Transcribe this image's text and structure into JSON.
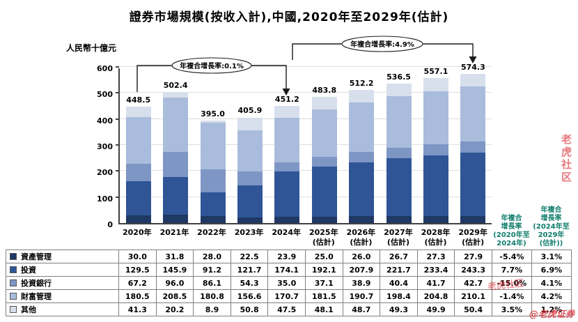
{
  "page": {
    "title": "證券市場規模(按收入計),中國,2020年至2029年(估計)",
    "unit_label": "人民幣十億元"
  },
  "annotations": {
    "cagr_2020_2024_label": "年複合增長率:0.1%",
    "cagr_2024_2029_label": "年複合增長率:4.9%"
  },
  "cagr_column_headers": {
    "col_2020_2024": "年複合\n增長率\n(2020年至\n2024年)",
    "col_2024_2029": "年複合\n增長率\n(2024年至\n2029年\n(估計))"
  },
  "watermarks": {
    "side": "老虎社区",
    "table_overlay": "老虎社区",
    "bottom_right": "@老虎证券"
  },
  "chart_data": {
    "type": "bar",
    "stacked": true,
    "title": "證券市場規模(按收入計),中國,2020年至2029年(估計)",
    "ylabel": "人民幣十億元",
    "ylim": [
      0,
      600
    ],
    "yticks": [
      0,
      100,
      200,
      300,
      400,
      500,
      600
    ],
    "grid": true,
    "legend_position": "table-below",
    "categories": [
      "2020年",
      "2021年",
      "2022年",
      "2023年",
      "2024年",
      "2025年\n(估計)",
      "2026年\n(估計)",
      "2027年\n(估計)",
      "2028年\n(估計)",
      "2029年\n(估計)"
    ],
    "series": [
      {
        "name": "資產管理",
        "color": "#1f3864",
        "values": [
          30.0,
          31.8,
          28.0,
          22.5,
          23.9,
          25.0,
          26.0,
          26.7,
          27.3,
          27.9
        ],
        "cagr_2020_2024": "-5.4%",
        "cagr_2024_2029": "3.1%"
      },
      {
        "name": "投資",
        "color": "#2f5597",
        "values": [
          129.5,
          145.9,
          91.2,
          121.7,
          174.1,
          192.1,
          207.9,
          221.7,
          233.4,
          243.3
        ],
        "cagr_2020_2024": "7.7%",
        "cagr_2024_2029": "6.9%"
      },
      {
        "name": "投資銀行",
        "color": "#7e96c4",
        "values": [
          67.2,
          96.0,
          86.1,
          54.3,
          35.0,
          37.1,
          38.9,
          40.4,
          41.7,
          42.7
        ],
        "cagr_2020_2024": "-15.0%",
        "cagr_2024_2029": "4.1%"
      },
      {
        "name": "財富管理",
        "color": "#a9bcdc",
        "values": [
          180.5,
          208.5,
          180.8,
          156.6,
          170.7,
          181.5,
          190.7,
          198.4,
          204.8,
          210.1
        ],
        "cagr_2020_2024": "-1.4%",
        "cagr_2024_2029": "4.2%"
      },
      {
        "name": "其他",
        "color": "#d8dfec",
        "values": [
          41.3,
          20.2,
          8.9,
          50.8,
          47.5,
          48.1,
          48.7,
          49.3,
          49.9,
          50.4
        ],
        "cagr_2020_2024": "3.5%",
        "cagr_2024_2029": "1.2%"
      }
    ],
    "totals": [
      448.5,
      502.4,
      395.0,
      405.9,
      451.2,
      483.8,
      512.2,
      536.5,
      557.1,
      574.3
    ],
    "cagr_overall_2020_2024": "0.1%",
    "cagr_overall_2024_2029": "4.9%"
  }
}
